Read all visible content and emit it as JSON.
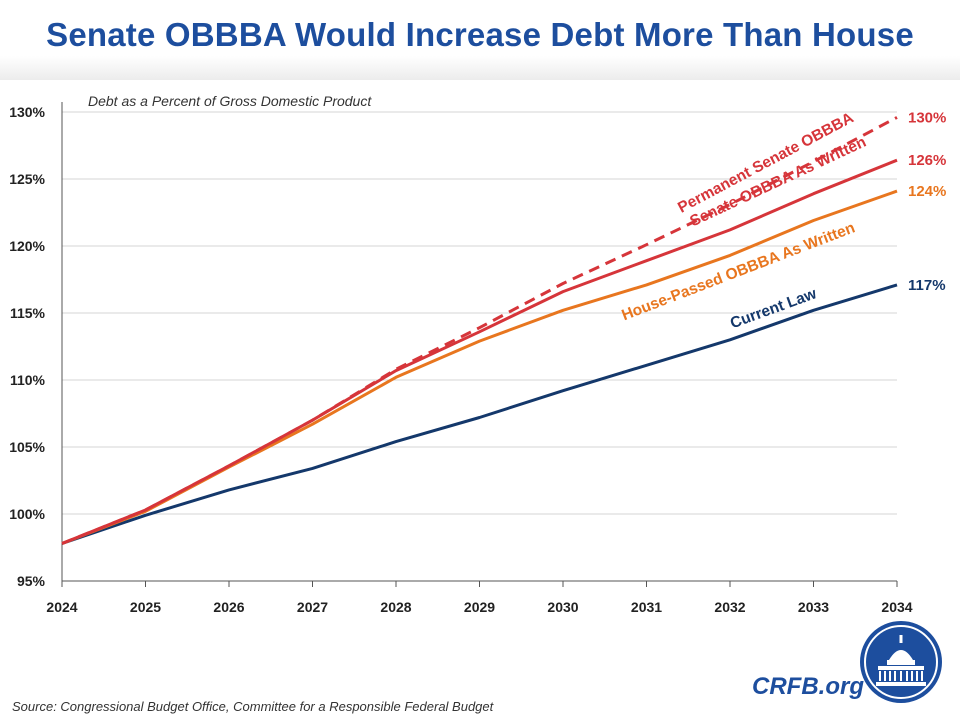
{
  "title": "Senate OBBBA Would Increase Debt More Than House",
  "source": "Source: Congressional Budget Office, Committee for a Responsible Federal Budget",
  "brand": "CRFB.org",
  "colors": {
    "title": "#1d4e9e",
    "current_law": "#14386b",
    "house": "#e8761f",
    "senate": "#d6353a",
    "permanent": "#d6353a",
    "grid": "#d4d4d4"
  },
  "chart_data": {
    "type": "line",
    "subtitle": "Debt as a Percent of Gross Domestic Product",
    "xlabel": "",
    "ylabel": "",
    "x": [
      2024,
      2025,
      2026,
      2027,
      2028,
      2029,
      2030,
      2031,
      2032,
      2033,
      2034
    ],
    "ylim": [
      95,
      130
    ],
    "yticks": [
      "95%",
      "100%",
      "105%",
      "110%",
      "115%",
      "120%",
      "125%",
      "130%"
    ],
    "grid": true,
    "series": [
      {
        "key": "current_law",
        "name": "Current Law",
        "style": "solid",
        "values": [
          97.8,
          99.9,
          101.8,
          103.4,
          105.4,
          107.2,
          109.2,
          111.1,
          113.0,
          115.2,
          117.1
        ],
        "end_label": "117%"
      },
      {
        "key": "house",
        "name": "House-Passed OBBBA As Written",
        "style": "solid",
        "values": [
          97.8,
          100.2,
          103.5,
          106.7,
          110.2,
          112.9,
          115.2,
          117.1,
          119.3,
          121.9,
          124.1
        ],
        "end_label": "124%"
      },
      {
        "key": "senate",
        "name": "Senate OBBBA As Written",
        "style": "solid",
        "values": [
          97.8,
          100.3,
          103.6,
          107.0,
          110.7,
          113.6,
          116.6,
          118.9,
          121.2,
          123.9,
          126.4
        ],
        "end_label": "126%"
      },
      {
        "key": "permanent",
        "name": "Permanent Senate OBBBA",
        "style": "dashed",
        "values": [
          97.8,
          100.3,
          103.6,
          107.0,
          110.8,
          113.9,
          117.2,
          120.1,
          123.1,
          126.3,
          129.6
        ],
        "end_label": "130%"
      }
    ]
  }
}
